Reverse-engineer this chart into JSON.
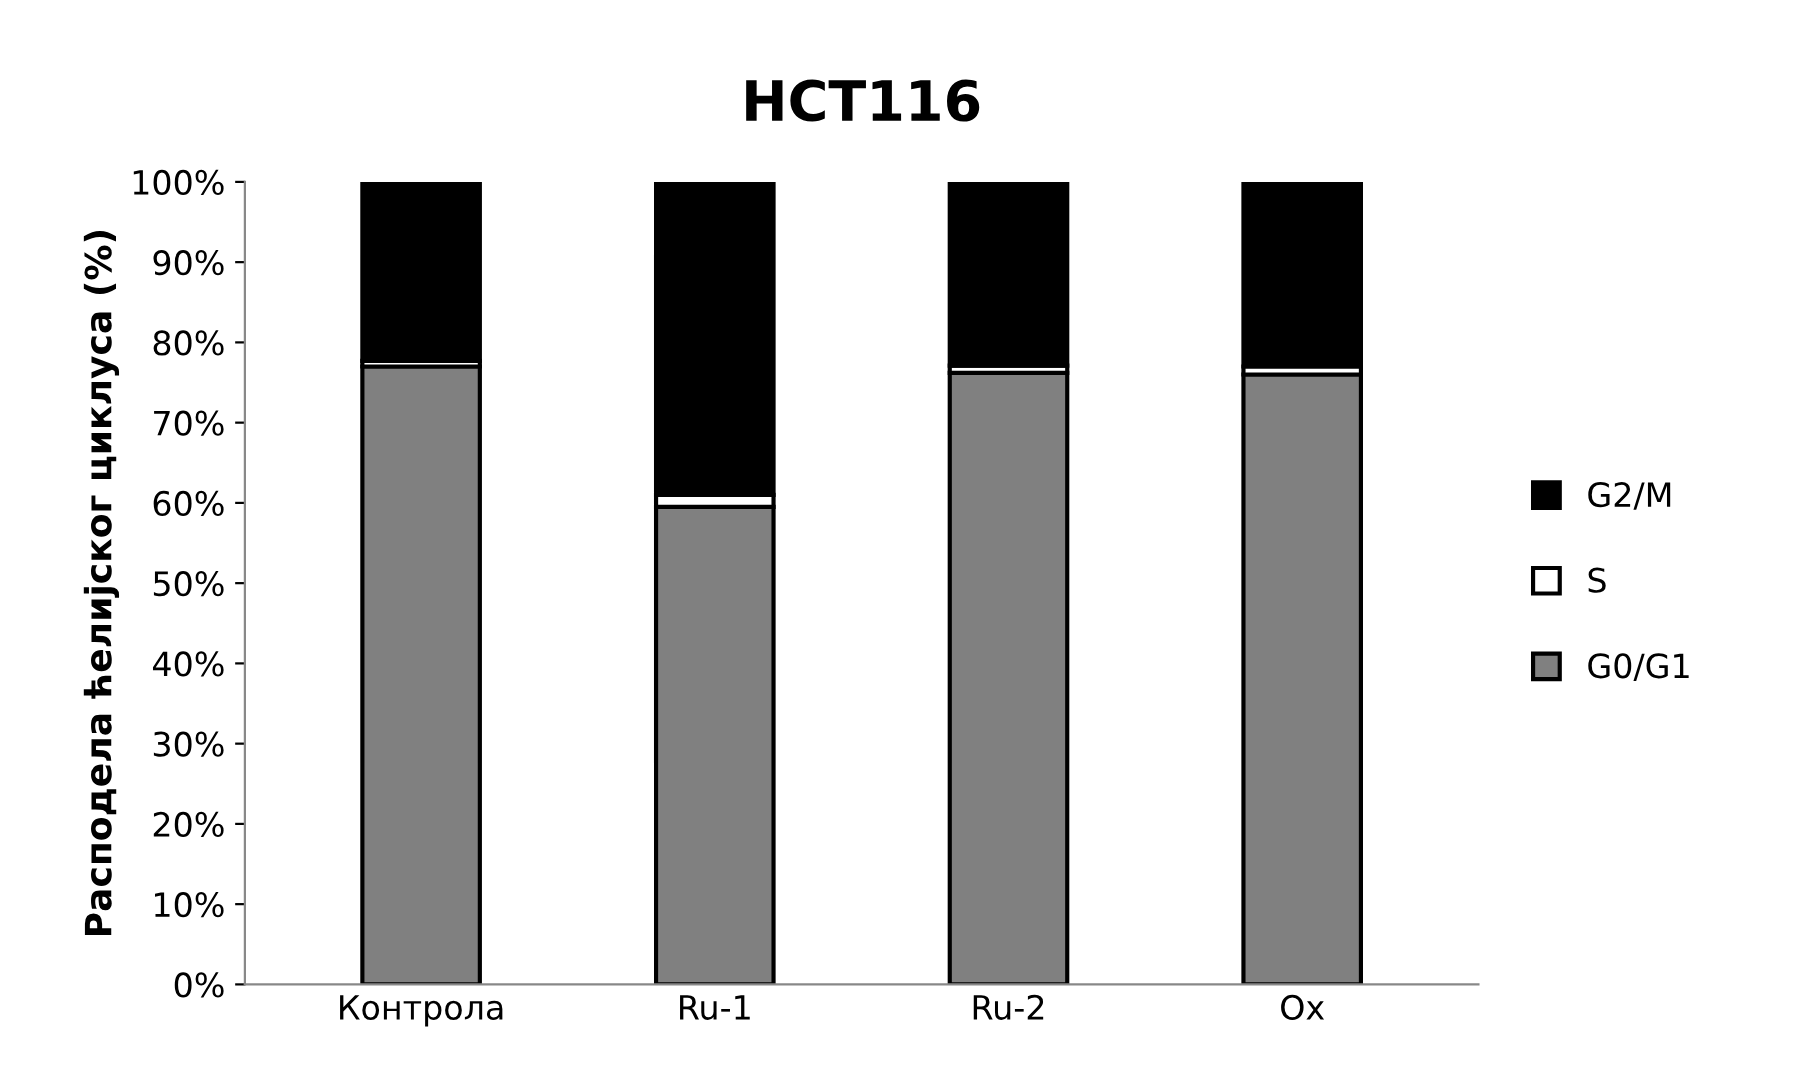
{
  "chart_data": {
    "type": "bar",
    "title": "HCT116",
    "ylabel": "Расподела ћелијског циклуса (%)",
    "categories": [
      "Контрола",
      "Ru-1",
      "Ru-2",
      "Ox"
    ],
    "stacked": true,
    "legend": "right",
    "grid": false,
    "ylim": [
      0,
      100
    ],
    "yticks": [
      {
        "value": 0,
        "label": "0%"
      },
      {
        "value": 10,
        "label": "10%"
      },
      {
        "value": 20,
        "label": "20%"
      },
      {
        "value": 30,
        "label": "30%"
      },
      {
        "value": 40,
        "label": "40%"
      },
      {
        "value": 50,
        "label": "50%"
      },
      {
        "value": 60,
        "label": "60%"
      },
      {
        "value": 70,
        "label": "70%"
      },
      {
        "value": 80,
        "label": "80%"
      },
      {
        "value": 90,
        "label": "90%"
      },
      {
        "value": 100,
        "label": "100%"
      }
    ],
    "series": [
      {
        "name": "G0/G1",
        "color": "#808080",
        "values": [
          77,
          59.5,
          76.2,
          76
        ]
      },
      {
        "name": "S",
        "color": "#ffffff",
        "values": [
          0.7,
          1.5,
          0.9,
          1
        ]
      },
      {
        "name": "G2/M",
        "color": "#000000",
        "values": [
          22.3,
          39,
          22.9,
          23
        ]
      }
    ]
  }
}
